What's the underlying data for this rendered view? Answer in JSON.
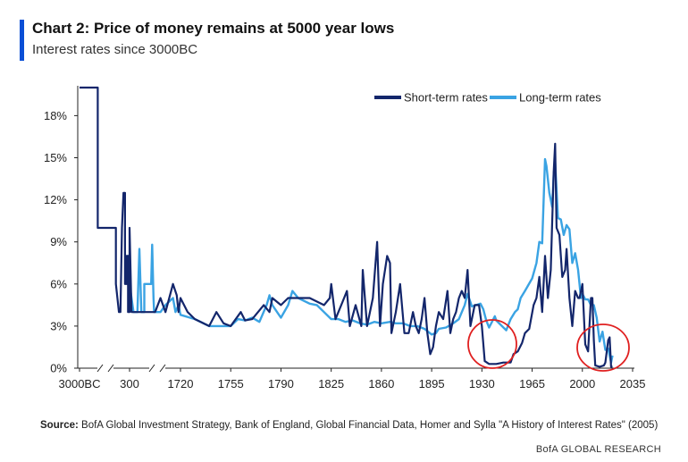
{
  "header": {
    "title": "Chart 2: Price of money remains at 5000 year lows",
    "subtitle": "Interest rates since 3000BC"
  },
  "footer": {
    "source_label": "Source:",
    "source_text": " BofA Global Investment Strategy, Bank of England, Global Financial Data, Homer and Sylla \"A History of Interest Rates\" (2005)",
    "brand": "BofA GLOBAL RESEARCH"
  },
  "colors": {
    "short_term": "#13266b",
    "long_term": "#3aa3e3",
    "highlight_circle": "#e02020",
    "axis": "#222222"
  },
  "chart_data": {
    "type": "line",
    "title": "Chart 2: Price of money remains at 5000 year lows",
    "subtitle": "Interest rates since 3000BC",
    "xlabel": "",
    "ylabel": "",
    "ylim": [
      0,
      20
    ],
    "y_ticks": [
      0,
      3,
      6,
      9,
      12,
      15,
      18
    ],
    "y_tick_labels": [
      "0%",
      "3%",
      "6%",
      "9%",
      "12%",
      "15%",
      "18%"
    ],
    "x_ticks": [
      -3000,
      300,
      1720,
      1755,
      1790,
      1825,
      1860,
      1895,
      1930,
      1965,
      2000,
      2035
    ],
    "x_tick_labels": [
      "3000BC",
      "300",
      "1720",
      "1755",
      "1790",
      "1825",
      "1860",
      "1895",
      "1930",
      "1965",
      "2000",
      "2035"
    ],
    "axis_breaks": "two breaks on x-axis (after 3000BC and after 300)",
    "grid": false,
    "legend": {
      "position": "top-right",
      "entries": [
        "Short-term rates",
        "Long-term rates"
      ]
    },
    "annotations": [
      "red circle around 1930s-1940s lows",
      "red circle around 2009-2020 lows"
    ],
    "series": [
      {
        "name": "Short-term rates",
        "points": [
          [
            -3000,
            20
          ],
          [
            -2000,
            20
          ],
          [
            -1800,
            20
          ],
          [
            -1800,
            10
          ],
          [
            -1000,
            10
          ],
          [
            -600,
            10
          ],
          [
            -600,
            6
          ],
          [
            -400,
            4
          ],
          [
            -300,
            4
          ],
          [
            -200,
            10
          ],
          [
            -100,
            12.5
          ],
          [
            0,
            12.5
          ],
          [
            0,
            6
          ],
          [
            100,
            6
          ],
          [
            100,
            8
          ],
          [
            200,
            8
          ],
          [
            200,
            4
          ],
          [
            300,
            4
          ],
          [
            300,
            10
          ],
          [
            400,
            4
          ],
          [
            1600,
            4
          ],
          [
            1640,
            5
          ],
          [
            1660,
            4
          ],
          [
            1690,
            6
          ],
          [
            1705,
            5.2
          ],
          [
            1712,
            4
          ],
          [
            1720,
            5
          ],
          [
            1725,
            4
          ],
          [
            1730,
            3.5
          ],
          [
            1740,
            3
          ],
          [
            1745,
            4
          ],
          [
            1750,
            3.2
          ],
          [
            1755,
            3
          ],
          [
            1762,
            4
          ],
          [
            1765,
            3.4
          ],
          [
            1770,
            3.5
          ],
          [
            1778,
            4.5
          ],
          [
            1782,
            4
          ],
          [
            1784,
            5
          ],
          [
            1790,
            4.5
          ],
          [
            1795,
            5
          ],
          [
            1800,
            5
          ],
          [
            1810,
            5
          ],
          [
            1820,
            4.5
          ],
          [
            1824,
            5
          ],
          [
            1825,
            6
          ],
          [
            1828,
            3.5
          ],
          [
            1832,
            4.5
          ],
          [
            1836,
            5.5
          ],
          [
            1838,
            3
          ],
          [
            1842,
            4.5
          ],
          [
            1846,
            3
          ],
          [
            1847,
            7
          ],
          [
            1850,
            3
          ],
          [
            1854,
            5
          ],
          [
            1857,
            9
          ],
          [
            1859,
            3
          ],
          [
            1861,
            6
          ],
          [
            1864,
            8
          ],
          [
            1866,
            7.5
          ],
          [
            1867,
            2.5
          ],
          [
            1870,
            4
          ],
          [
            1873,
            6
          ],
          [
            1876,
            2.5
          ],
          [
            1879,
            2.5
          ],
          [
            1882,
            4
          ],
          [
            1884,
            3
          ],
          [
            1886,
            2.5
          ],
          [
            1888,
            3.5
          ],
          [
            1890,
            5
          ],
          [
            1892,
            2.5
          ],
          [
            1894,
            1
          ],
          [
            1896,
            1.5
          ],
          [
            1898,
            3
          ],
          [
            1900,
            4
          ],
          [
            1903,
            3.5
          ],
          [
            1906,
            5.5
          ],
          [
            1908,
            2.5
          ],
          [
            1910,
            3.5
          ],
          [
            1912,
            4
          ],
          [
            1914,
            5
          ],
          [
            1916,
            5.5
          ],
          [
            1918,
            5
          ],
          [
            1920,
            7
          ],
          [
            1922,
            3
          ],
          [
            1925,
            4.5
          ],
          [
            1928,
            4.5
          ],
          [
            1930,
            3
          ],
          [
            1932,
            0.5
          ],
          [
            1935,
            0.3
          ],
          [
            1940,
            0.3
          ],
          [
            1945,
            0.4
          ],
          [
            1950,
            0.4
          ],
          [
            1952,
            1
          ],
          [
            1955,
            1.2
          ],
          [
            1958,
            1.8
          ],
          [
            1960,
            2.5
          ],
          [
            1963,
            2.8
          ],
          [
            1966,
            4.5
          ],
          [
            1968,
            5
          ],
          [
            1970,
            6.5
          ],
          [
            1972,
            4
          ],
          [
            1974,
            8
          ],
          [
            1976,
            5
          ],
          [
            1978,
            7
          ],
          [
            1980,
            14
          ],
          [
            1981,
            16
          ],
          [
            1982,
            10
          ],
          [
            1984,
            9.5
          ],
          [
            1986,
            6.5
          ],
          [
            1988,
            7
          ],
          [
            1989,
            8.5
          ],
          [
            1991,
            5
          ],
          [
            1993,
            3
          ],
          [
            1995,
            5.5
          ],
          [
            1997,
            5
          ],
          [
            1998,
            5
          ],
          [
            2000,
            6
          ],
          [
            2002,
            1.7
          ],
          [
            2004,
            1.2
          ],
          [
            2006,
            5
          ],
          [
            2007,
            5
          ],
          [
            2008,
            2
          ],
          [
            2009,
            0.2
          ],
          [
            2012,
            0.1
          ],
          [
            2015,
            0.2
          ],
          [
            2016,
            0.4
          ],
          [
            2018,
            2
          ],
          [
            2019,
            2.2
          ],
          [
            2020,
            0.1
          ],
          [
            2021,
            0.1
          ]
        ]
      },
      {
        "name": "Long-term rates",
        "points": [
          [
            200,
            8
          ],
          [
            300,
            8
          ],
          [
            300,
            6
          ],
          [
            500,
            4
          ],
          [
            700,
            4
          ],
          [
            800,
            8.5
          ],
          [
            900,
            4
          ],
          [
            1050,
            4
          ],
          [
            1050,
            6
          ],
          [
            1200,
            6
          ],
          [
            1400,
            6
          ],
          [
            1450,
            8.8
          ],
          [
            1520,
            5
          ],
          [
            1550,
            4
          ],
          [
            1620,
            4
          ],
          [
            1640,
            4
          ],
          [
            1660,
            4.5
          ],
          [
            1690,
            5
          ],
          [
            1700,
            4
          ],
          [
            1712,
            4.5
          ],
          [
            1720,
            3.8
          ],
          [
            1730,
            3.5
          ],
          [
            1740,
            3
          ],
          [
            1750,
            3
          ],
          [
            1755,
            3
          ],
          [
            1760,
            3.5
          ],
          [
            1765,
            3.4
          ],
          [
            1770,
            3.6
          ],
          [
            1775,
            3.3
          ],
          [
            1780,
            4.5
          ],
          [
            1782,
            5.2
          ],
          [
            1784,
            4.5
          ],
          [
            1790,
            3.6
          ],
          [
            1795,
            4.5
          ],
          [
            1798,
            5.5
          ],
          [
            1802,
            5
          ],
          [
            1810,
            4.6
          ],
          [
            1815,
            4.5
          ],
          [
            1820,
            4
          ],
          [
            1825,
            3.5
          ],
          [
            1830,
            3.5
          ],
          [
            1835,
            3.3
          ],
          [
            1840,
            3.4
          ],
          [
            1845,
            3.2
          ],
          [
            1850,
            3.1
          ],
          [
            1855,
            3.3
          ],
          [
            1860,
            3.2
          ],
          [
            1866,
            3.3
          ],
          [
            1870,
            3.2
          ],
          [
            1875,
            3.2
          ],
          [
            1880,
            3
          ],
          [
            1885,
            3
          ],
          [
            1890,
            2.8
          ],
          [
            1895,
            2.4
          ],
          [
            1898,
            2.5
          ],
          [
            1900,
            2.8
          ],
          [
            1905,
            2.9
          ],
          [
            1910,
            3.2
          ],
          [
            1914,
            3.5
          ],
          [
            1918,
            4.5
          ],
          [
            1920,
            5.3
          ],
          [
            1923,
            4.4
          ],
          [
            1926,
            4.5
          ],
          [
            1929,
            4.6
          ],
          [
            1931,
            4.2
          ],
          [
            1933,
            3.4
          ],
          [
            1935,
            2.9
          ],
          [
            1939,
            3.7
          ],
          [
            1940,
            3.4
          ],
          [
            1945,
            2.9
          ],
          [
            1947,
            2.7
          ],
          [
            1950,
            3.5
          ],
          [
            1953,
            4
          ],
          [
            1955,
            4.2
          ],
          [
            1957,
            5
          ],
          [
            1960,
            5.5
          ],
          [
            1965,
            6.4
          ],
          [
            1968,
            7.5
          ],
          [
            1970,
            9
          ],
          [
            1972,
            8.9
          ],
          [
            1974,
            14.9
          ],
          [
            1975,
            14.4
          ],
          [
            1977,
            12.5
          ],
          [
            1979,
            11.5
          ],
          [
            1980,
            13.8
          ],
          [
            1981,
            14.7
          ],
          [
            1983,
            10.7
          ],
          [
            1985,
            10.6
          ],
          [
            1987,
            9.5
          ],
          [
            1989,
            10.2
          ],
          [
            1991,
            9.9
          ],
          [
            1993,
            7.5
          ],
          [
            1995,
            8.2
          ],
          [
            1997,
            7
          ],
          [
            1999,
            5
          ],
          [
            2000,
            5.3
          ],
          [
            2002,
            4.9
          ],
          [
            2004,
            4.9
          ],
          [
            2006,
            4.5
          ],
          [
            2008,
            4.5
          ],
          [
            2010,
            3.6
          ],
          [
            2012,
            1.9
          ],
          [
            2014,
            2.6
          ],
          [
            2016,
            1.3
          ],
          [
            2018,
            1.4
          ],
          [
            2019,
            0.9
          ],
          [
            2020,
            0.4
          ],
          [
            2021,
            0.9
          ]
        ]
      }
    ]
  }
}
